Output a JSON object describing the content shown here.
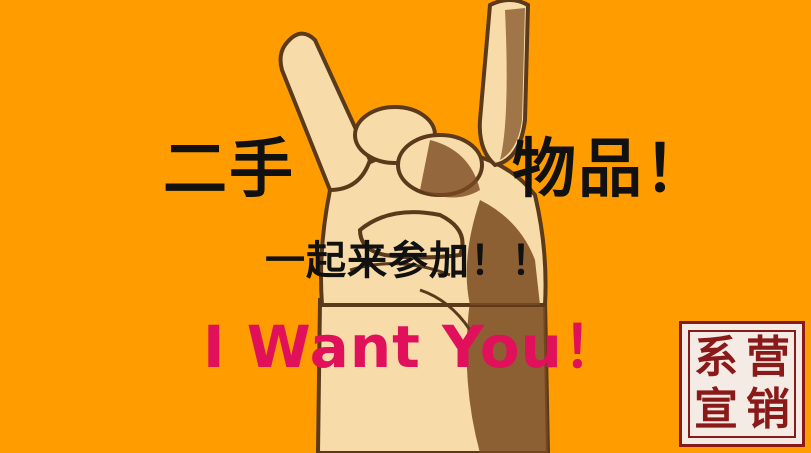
{
  "slide": {
    "title_left": "二手",
    "title_right": "物品！",
    "subtitle": "一起来参加！！",
    "slogan": "I Want You！",
    "seal_chars": [
      "系",
      "营",
      "宣",
      "销"
    ],
    "colors": {
      "background": "#ff9d00",
      "slogan": "#e0105a",
      "seal": "#8a1a1a",
      "hand_skin": "#f7dcaa",
      "hand_outline": "#5a3a1a"
    },
    "illustration": "rock-hand-gesture"
  }
}
